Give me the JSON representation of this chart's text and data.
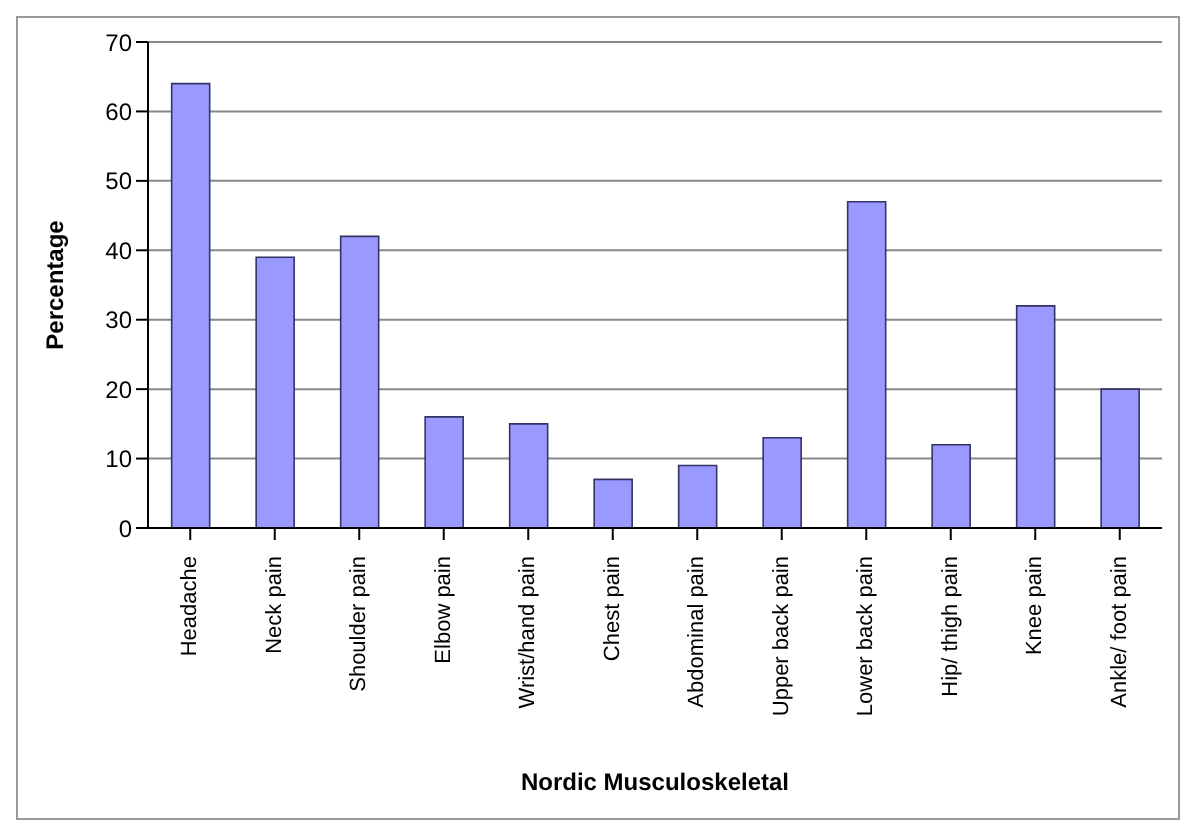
{
  "chart_data": {
    "type": "bar",
    "xlabel": "Nordic Musculoskeletal",
    "ylabel": "Percentage",
    "categories": [
      "Headache",
      "Neck pain",
      "Shoulder pain",
      "Elbow pain",
      "Wrist/hand pain",
      "Chest pain",
      "Abdominal pain",
      "Upper back pain",
      "Lower back pain",
      "Hip/ thigh pain",
      "Knee pain",
      "Ankle/ foot pain"
    ],
    "values": [
      64,
      39,
      42,
      16,
      15,
      7,
      9,
      13,
      47,
      12,
      32,
      20
    ],
    "color": "#9999ff",
    "ylim": [
      0,
      70
    ],
    "yticks": [
      0,
      10,
      20,
      30,
      40,
      50,
      60,
      70
    ],
    "grid": "y"
  }
}
